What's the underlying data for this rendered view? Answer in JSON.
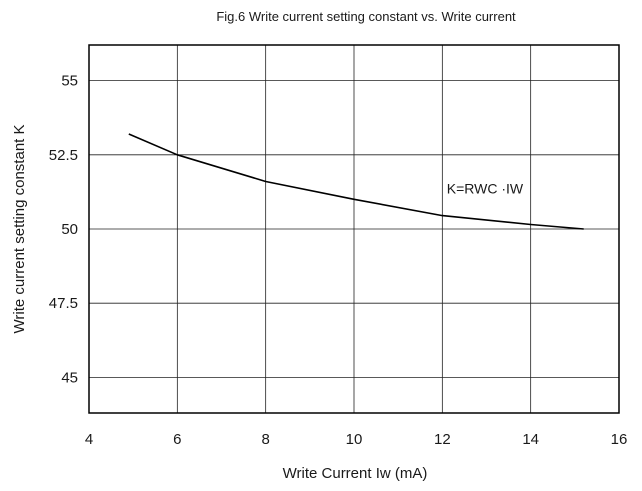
{
  "chart_data": {
    "type": "line",
    "title": "Fig.6 Write current setting constant vs. Write current",
    "xlabel": "Write Current Iw (mA)",
    "ylabel": "Write current setting constant K",
    "xlim": [
      4,
      16
    ],
    "ylim": [
      43.8,
      56.2
    ],
    "xticks": [
      4,
      6,
      8,
      10,
      12,
      14,
      16
    ],
    "xtick_labels": [
      "4",
      "6",
      "8",
      "10",
      "12",
      "14",
      "16"
    ],
    "yticks": [
      45,
      47.5,
      50,
      52.5,
      55
    ],
    "ytick_labels": [
      "45",
      "47.5",
      "50",
      "52.5",
      "55"
    ],
    "grid": true,
    "series": [
      {
        "x": [
          4.9,
          6.0,
          8.0,
          10.0,
          12.0,
          14.0,
          15.2
        ],
        "y": [
          53.2,
          52.5,
          51.6,
          51.0,
          50.45,
          50.15,
          50.0
        ]
      }
    ],
    "annotations": [
      {
        "text": "K=RWC ·IW",
        "x": 12.1,
        "y": 51.2
      }
    ]
  }
}
